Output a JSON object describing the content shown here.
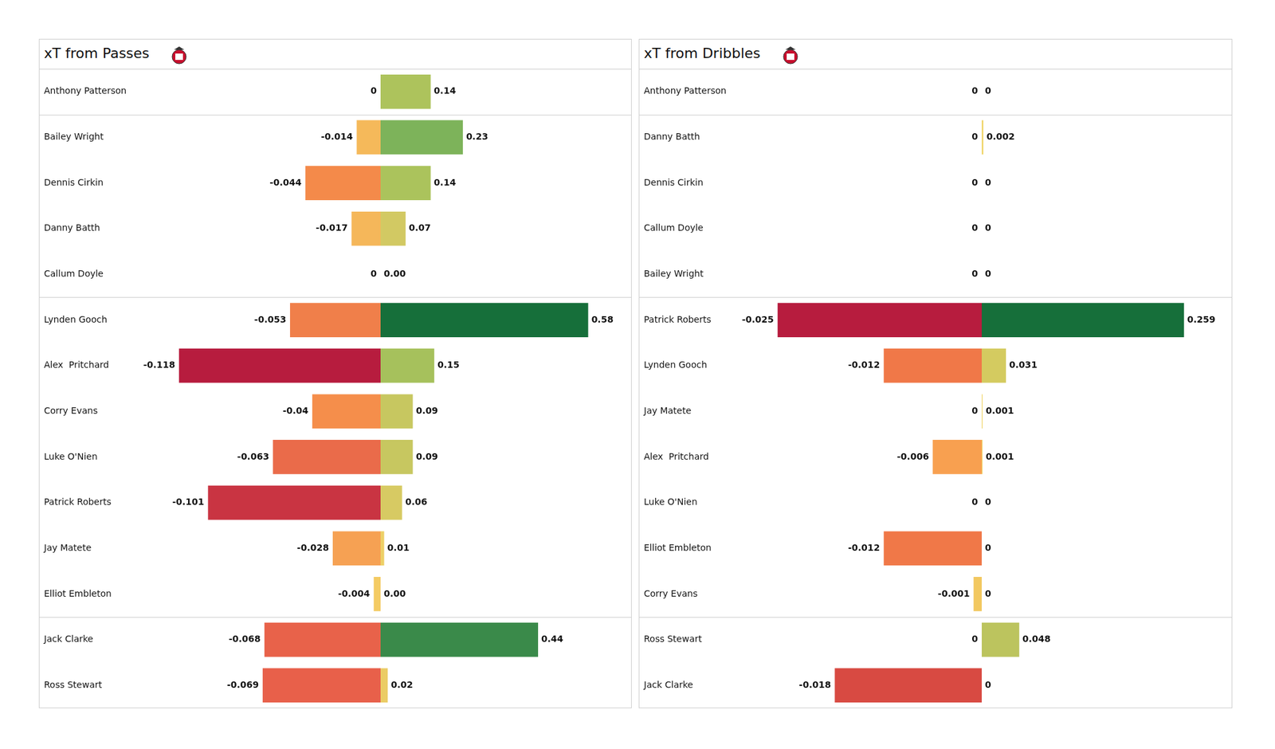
{
  "chart_data": [
    {
      "type": "bar",
      "orientation": "horizontal",
      "title": "xT from Passes",
      "tick_labels": false,
      "data_labels": true,
      "categories": [
        "Anthony Patterson",
        "Bailey Wright",
        "Dennis Cirkin",
        "Danny Batth",
        "Callum Doyle",
        "Lynden Gooch",
        "Alex  Pritchard",
        "Corry Evans",
        "Luke O'Nien",
        "Patrick Roberts",
        "Jay Matete",
        "Elliot Embleton",
        "Jack Clarke",
        "Ross Stewart"
      ],
      "values": [
        0,
        -0.014,
        -0.044,
        -0.017,
        0,
        -0.053,
        -0.118,
        -0.04,
        -0.063,
        -0.101,
        -0.028,
        -0.004,
        -0.068,
        -0.069
      ],
      "value_labels": [
        "0",
        "-0.014",
        "-0.044",
        "-0.017",
        "0",
        "-0.053",
        "-0.118",
        "-0.04",
        "-0.063",
        "-0.101",
        "-0.028",
        "-0.004",
        "-0.068",
        "-0.069"
      ],
      "colors": [
        "#f0d46a",
        "#f5b95a",
        "#f48a4a",
        "#f5b75a",
        "#f0d46a",
        "#f07f4a",
        "#b71c3e",
        "#f58e4b",
        "#ea6b4a",
        "#c93442",
        "#f6a153",
        "#f4cb63",
        "#e8624a",
        "#e8604a"
      ],
      "xlim": [
        -0.2,
        0
      ]
    },
    {
      "type": "bar",
      "orientation": "horizontal",
      "tick_labels": false,
      "data_labels": true,
      "categories": [
        "Anthony Patterson",
        "Bailey Wright",
        "Dennis Cirkin",
        "Danny Batth",
        "Callum Doyle",
        "Lynden Gooch",
        "Alex  Pritchard",
        "Corry Evans",
        "Luke O'Nien",
        "Patrick Roberts",
        "Jay Matete",
        "Elliot Embleton",
        "Jack Clarke",
        "Ross Stewart"
      ],
      "values": [
        0.14,
        0.23,
        0.14,
        0.07,
        0,
        0.58,
        0.15,
        0.09,
        0.09,
        0.06,
        0.01,
        0,
        0.44,
        0.02
      ],
      "value_labels": [
        "0.14",
        "0.23",
        "0.14",
        "0.07",
        "0.00",
        "0.58",
        "0.15",
        "0.09",
        "0.09",
        "0.06",
        "0.01",
        "0.00",
        "0.44",
        "0.02"
      ],
      "colors": [
        "#adc35c",
        "#7db35a",
        "#abc35c",
        "#d2c963",
        "#f0d46a",
        "#166f3a",
        "#a6c15c",
        "#c7c760",
        "#c7c760",
        "#d7ca63",
        "#edd067",
        "#f0d46a",
        "#3a8a4a",
        "#ebcc65"
      ],
      "xlim": [
        0,
        0.7
      ]
    },
    {
      "type": "bar",
      "orientation": "horizontal",
      "title": "xT from Dribbles",
      "tick_labels": false,
      "data_labels": true,
      "categories": [
        "Anthony Patterson",
        "Danny Batth",
        "Dennis Cirkin",
        "Callum Doyle",
        "Bailey Wright",
        "Patrick Roberts",
        "Lynden Gooch",
        "Jay Matete",
        "Alex  Pritchard",
        "Luke O'Nien",
        "Elliot Embleton",
        "Corry Evans",
        "Ross Stewart",
        "Jack Clarke"
      ],
      "values": [
        0,
        0,
        0,
        0,
        0,
        -0.025,
        -0.012,
        0,
        -0.006,
        0,
        -0.012,
        -0.001,
        0,
        -0.018
      ],
      "value_labels": [
        "0",
        "0",
        "0",
        "0",
        "0",
        "-0.025",
        "-0.012",
        "0",
        "-0.006",
        "0",
        "-0.012",
        "-0.001",
        "0",
        "-0.018"
      ],
      "colors": [
        "#f0d46a",
        "#f0d46a",
        "#f0d46a",
        "#f0d46a",
        "#f0d46a",
        "#b71c3e",
        "#f07848",
        "#f0d46a",
        "#f8a050",
        "#f0d46a",
        "#f07848",
        "#f2c860",
        "#f0d46a",
        "#d84a42"
      ],
      "xlim": [
        -0.042,
        0
      ]
    },
    {
      "type": "bar",
      "orientation": "horizontal",
      "tick_labels": false,
      "data_labels": true,
      "categories": [
        "Anthony Patterson",
        "Danny Batth",
        "Dennis Cirkin",
        "Callum Doyle",
        "Bailey Wright",
        "Patrick Roberts",
        "Lynden Gooch",
        "Jay Matete",
        "Alex  Pritchard",
        "Luke O'Nien",
        "Elliot Embleton",
        "Corry Evans",
        "Ross Stewart",
        "Jack Clarke"
      ],
      "values": [
        0,
        0.002,
        0,
        0,
        0,
        0.259,
        0.031,
        0.001,
        0.001,
        0,
        0,
        0,
        0.048,
        0
      ],
      "value_labels": [
        "0",
        "0.002",
        "0",
        "0",
        "0",
        "0.259",
        "0.031",
        "0.001",
        "0.001",
        "0",
        "0",
        "0",
        "0.048",
        "0"
      ],
      "colors": [
        "#f0d46a",
        "#efd468",
        "#f0d46a",
        "#f0d46a",
        "#f0d46a",
        "#166f3a",
        "#d4cb60",
        "#efd468",
        "#efd468",
        "#f0d46a",
        "#f0d46a",
        "#f0d46a",
        "#bcc45e",
        "#f0d46a"
      ],
      "xlim": [
        0,
        0.32
      ]
    }
  ]
}
